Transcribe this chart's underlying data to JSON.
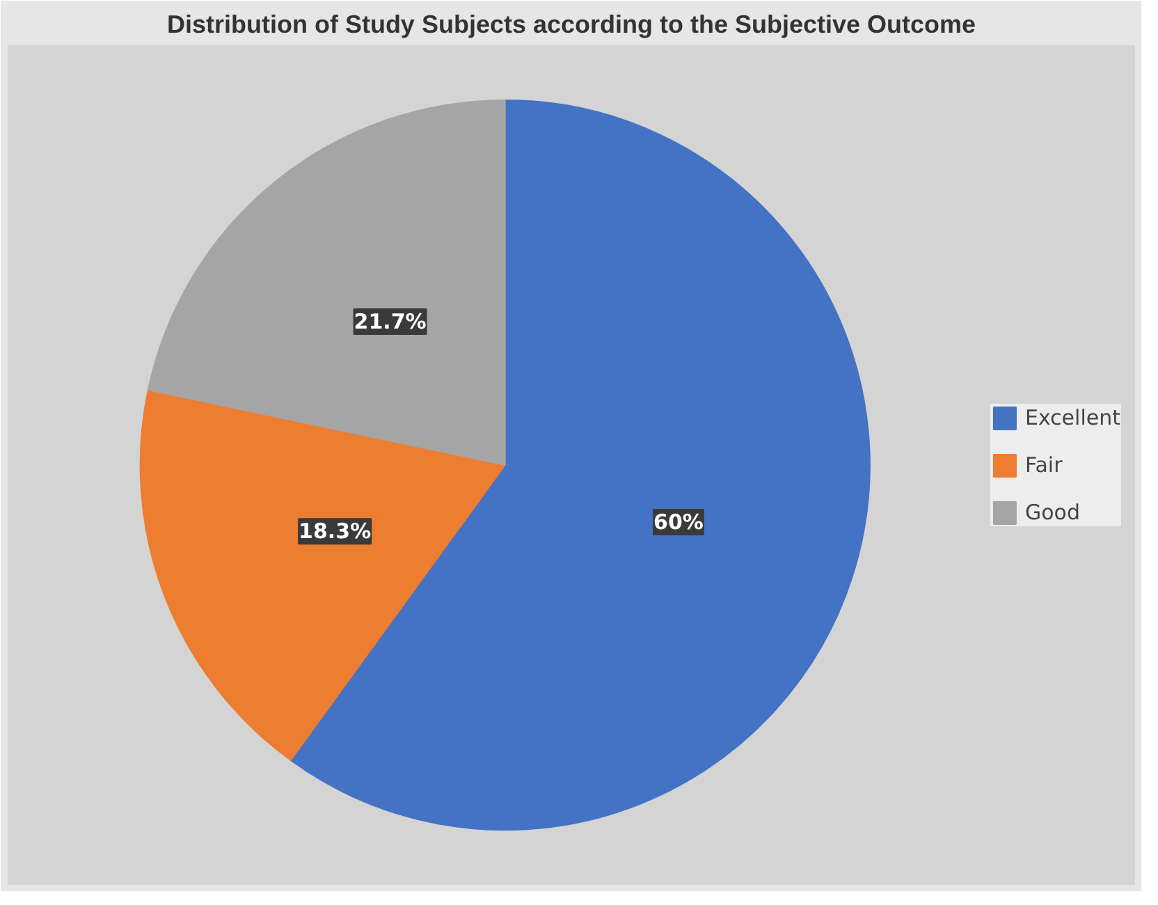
{
  "chart_data": {
    "type": "pie",
    "title": "Distribution of Study Subjects according to the Subjective Outcome",
    "categories": [
      "Excellent",
      "Fair",
      "Good"
    ],
    "values": [
      60,
      18.3,
      21.7
    ],
    "colors": [
      "#4472c4",
      "#ed7d31",
      "#a5a5a5"
    ],
    "value_labels": [
      "60%",
      "18.3%",
      "21.7%"
    ],
    "legend": "right"
  }
}
